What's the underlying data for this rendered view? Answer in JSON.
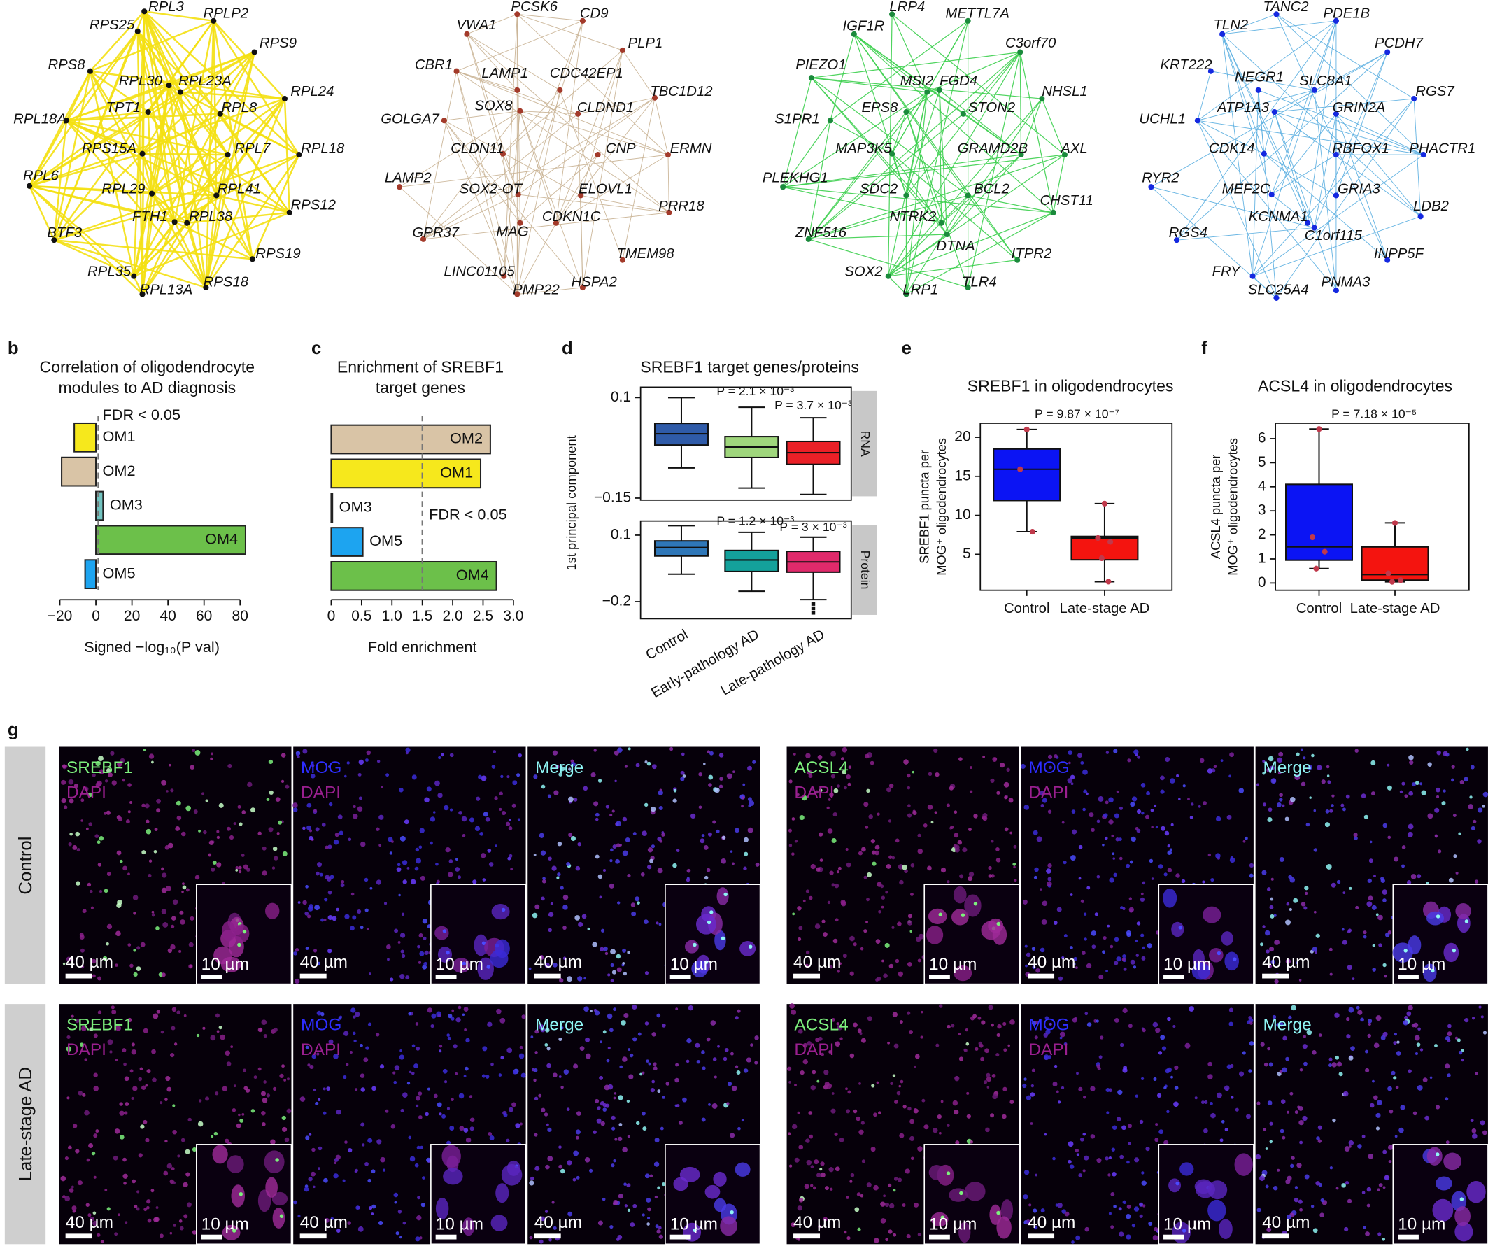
{
  "networks": [
    {
      "edge_color": "#f4e012",
      "node_color": "#111111",
      "nodes": [
        "RPL3",
        "RPLP2",
        "RPS25",
        "RPS9",
        "RPS8",
        "RPL30",
        "RPL23A",
        "RPL24",
        "RPL18A",
        "TPT1",
        "RPL8",
        "RPS15A",
        "RPL7",
        "RPL18",
        "RPL6",
        "RPL29",
        "RPL41",
        "FTH1",
        "RPL38",
        "RPS12",
        "BTF3",
        "RPS19",
        "RPL35",
        "RPS18",
        "RPL13A"
      ]
    },
    {
      "edge_color": "#c9b294",
      "node_color": "#a33a2a",
      "nodes": [
        "PCSK6",
        "CD9",
        "VWA1",
        "PLP1",
        "CBR1",
        "LAMP1",
        "CDC42EP1",
        "TBC1D12",
        "SOX8",
        "CLDND1",
        "GOLGA7",
        "CLDN11",
        "CNP",
        "ERMN",
        "LAMP2",
        "SOX2-OT",
        "ELOVL1",
        "GPR37",
        "MAG",
        "CDKN1C",
        "PRR18",
        "TMEM98",
        "LINC01105",
        "HSPA2",
        "PMP22"
      ]
    },
    {
      "edge_color": "#3ccf4e",
      "node_color": "#1b8a3c",
      "nodes": [
        "LRP4",
        "METTL7A",
        "IGF1R",
        "C3orf70",
        "PIEZO1",
        "MSI2",
        "FGD4",
        "NHSL1",
        "S1PR1",
        "EPS8",
        "STON2",
        "MAP3K5",
        "GRAMD2B",
        "AXL",
        "PLEKHG1",
        "SDC2",
        "BCL2",
        "CHST11",
        "NTRK2",
        "ZNF516",
        "DTNA",
        "ITPR2",
        "SOX2",
        "LRP1",
        "TLR4"
      ]
    },
    {
      "edge_color": "#5aaee0",
      "node_color": "#1428e0",
      "nodes": [
        "TANC2",
        "PDE1B",
        "TLN2",
        "PCDH7",
        "KRT222",
        "NEGR1",
        "SLC8A1",
        "RGS7",
        "UCHL1",
        "ATP1A3",
        "GRIN2A",
        "CDK14",
        "RBFOX1",
        "PHACTR1",
        "RYR2",
        "MEF2C",
        "GRIA3",
        "LDB2",
        "KCNMA1",
        "C1orf115",
        "RGS4",
        "INPP5F",
        "FRY",
        "SLC25A4",
        "PNMA3"
      ]
    }
  ],
  "chart_data": [
    {
      "type": "hbar",
      "panel_label": "b",
      "title": [
        "Correlation of oligodendrocyte",
        "modules to AD diagnosis"
      ],
      "categories": [
        "OM1",
        "OM2",
        "OM3",
        "OM4",
        "OM5"
      ],
      "values": [
        -12,
        -19,
        4,
        83,
        -6
      ],
      "colors": [
        "#f6e81c",
        "#d9c4a6",
        "#72c3c0",
        "#6cc04a",
        "#1da4f0"
      ],
      "xlim": [
        -24,
        85
      ],
      "xticks": [
        {
          "value": -20,
          "label": "−20"
        },
        0,
        20,
        40,
        60,
        80
      ],
      "threshold": 1.3,
      "threshold_label": "FDR < 0.05",
      "xlabel": "Signed −log₁₀(P val)"
    },
    {
      "type": "hbar",
      "panel_label": "c",
      "title": [
        "Enrichment of SREBF1",
        "target genes"
      ],
      "categories": [
        "OM2",
        "OM1",
        "OM3",
        "OM5",
        "OM4"
      ],
      "values": [
        2.62,
        2.46,
        0.02,
        0.52,
        2.72
      ],
      "colors": [
        "#d9c4a6",
        "#f6e81c",
        "#72c3c0",
        "#1da4f0",
        "#6cc04a"
      ],
      "xlim": [
        0,
        3
      ],
      "xticks": [
        0,
        0.5,
        {
          "value": 1,
          "label": "1.0"
        },
        1.5,
        {
          "value": 2,
          "label": "2.0"
        },
        2.5,
        {
          "value": 3,
          "label": "3.0"
        }
      ],
      "threshold": 1.5,
      "threshold_label": "FDR < 0.05",
      "xlabel": "Fold enrichment"
    },
    {
      "type": "box",
      "panel_label": "d",
      "title": "SREBF1 target genes/proteins",
      "ylabel": "1st principal component",
      "categories": [
        "Control",
        "Early-pathology AD",
        "Late-pathology AD"
      ],
      "panels": [
        {
          "label": "RNA",
          "ylim": [
            -0.155,
            0.126
          ],
          "yticks": [
            0.1,
            {
              "value": -0.15,
              "label": "−0.15"
            }
          ],
          "p_values": [
            "P = 2.1 × 10⁻³",
            "P = 3.7 × 10⁻³"
          ],
          "boxes": [
            {
              "min": -0.075,
              "q1": -0.018,
              "median": 0.01,
              "q3": 0.036,
              "max": 0.1,
              "color": "#2f5ba9"
            },
            {
              "min": -0.125,
              "q1": -0.049,
              "median": -0.023,
              "q3": 0.003,
              "max": 0.076,
              "color": "#9fd67c"
            },
            {
              "min": -0.141,
              "q1": -0.066,
              "median": -0.037,
              "q3": -0.009,
              "max": 0.05,
              "color": "#ea2027"
            }
          ]
        },
        {
          "label": "Protein",
          "ylim": [
            -0.277,
            0.164
          ],
          "yticks": [
            0.1,
            {
              "value": -0.2,
              "label": "−0.2"
            }
          ],
          "p_values": [
            "P = 1.2 × 10⁻³",
            "P = 3 × 10⁻³"
          ],
          "boxes": [
            {
              "min": -0.076,
              "q1": 0.006,
              "median": 0.044,
              "q3": 0.074,
              "max": 0.143,
              "color": "#2f77b8"
            },
            {
              "min": -0.153,
              "q1": -0.064,
              "median": -0.012,
              "q3": 0.031,
              "max": 0.113,
              "color": "#14a19b"
            },
            {
              "min": -0.191,
              "q1": -0.067,
              "median": -0.021,
              "q3": 0.027,
              "max": 0.091,
              "color": "#e02a6b",
              "outliers": [
                -0.21,
                -0.23,
                -0.25
              ]
            }
          ]
        }
      ]
    },
    {
      "type": "box",
      "panel_label": "e",
      "title": "SREBF1 in oligodendrocytes",
      "ylabel": [
        "SREBF1 puncta per",
        "MOG⁺ oligodendrocytes"
      ],
      "categories": [
        "Control",
        "Late-stage AD"
      ],
      "p_value": "P = 9.87 × 10⁻⁷",
      "ylim": [
        0.4,
        21.8
      ],
      "yticks": [
        5,
        10,
        15,
        20
      ],
      "boxes": [
        {
          "min": 7.9,
          "q1": 11.9,
          "median": 15.9,
          "q3": 18.5,
          "max": 21.0,
          "color": "#0b14f4",
          "points": [
            21.0,
            15.9,
            7.9
          ]
        },
        {
          "min": 1.5,
          "q1": 4.3,
          "median": 7.1,
          "q3": 7.3,
          "max": 11.5,
          "color": "#f4140f",
          "points": [
            11.5,
            7.1,
            6.6,
            4.5,
            1.5
          ]
        }
      ]
    },
    {
      "type": "box",
      "panel_label": "f",
      "title": "ACSL4 in oligodendrocytes",
      "ylabel": [
        "ACSL4 puncta per",
        "MOG⁺ oligodendrocytes"
      ],
      "categories": [
        "Control",
        "Late-stage AD"
      ],
      "p_value": "P = 7.18 × 10⁻⁵",
      "ylim": [
        -0.3,
        6.64
      ],
      "yticks": [
        0,
        1,
        2,
        3,
        4,
        5,
        6
      ],
      "boxes": [
        {
          "min": 0.6,
          "q1": 0.95,
          "median": 1.5,
          "q3": 4.1,
          "max": 6.4,
          "color": "#0b14f4",
          "points": [
            6.4,
            1.9,
            1.3,
            0.6
          ]
        },
        {
          "min": 0.05,
          "q1": 0.12,
          "median": 0.35,
          "q3": 1.5,
          "max": 2.5,
          "color": "#f4140f",
          "points": [
            2.5,
            0.4,
            0.12,
            0.05
          ]
        }
      ]
    }
  ],
  "micrographs": {
    "panel_label": "g",
    "rows": [
      "Control",
      "Late-stage AD"
    ],
    "groups": [
      {
        "tiles": [
          {
            "lines": [
              {
                "text": "SREBF1",
                "color": "#7df07d"
              },
              {
                "text": "DAPI",
                "color": "#9a1f8f"
              }
            ]
          },
          {
            "lines": [
              {
                "text": "MOG",
                "color": "#2d2dff"
              },
              {
                "text": "DAPI",
                "color": "#9a1f8f"
              }
            ]
          },
          {
            "lines": [
              {
                "text": "Merge",
                "color": "#8ff5f5"
              }
            ]
          }
        ]
      },
      {
        "tiles": [
          {
            "lines": [
              {
                "text": "ACSL4",
                "color": "#7df07d"
              },
              {
                "text": "DAPI",
                "color": "#9a1f8f"
              }
            ]
          },
          {
            "lines": [
              {
                "text": "MOG",
                "color": "#2d2dff"
              },
              {
                "text": "DAPI",
                "color": "#9a1f8f"
              }
            ]
          },
          {
            "lines": [
              {
                "text": "Merge",
                "color": "#8ff5f5"
              }
            ]
          }
        ]
      }
    ],
    "scale_bar": "40 µm",
    "inset_scale_bar": "10 µm"
  }
}
